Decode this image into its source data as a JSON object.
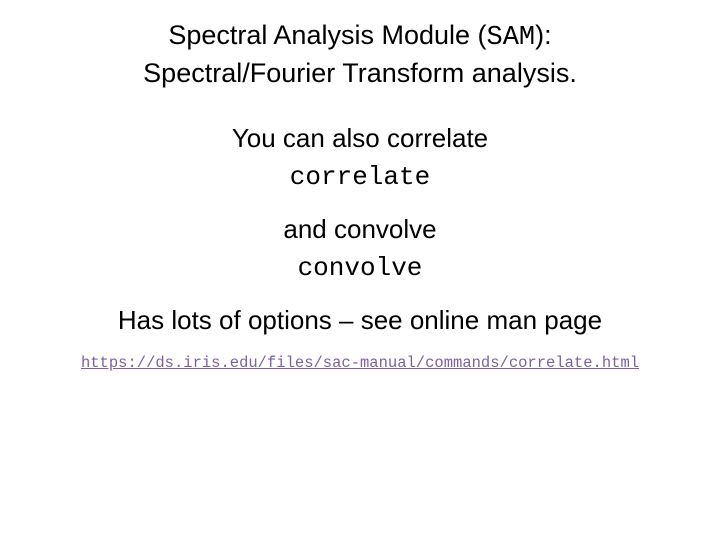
{
  "title": {
    "line1_pre": "Spectral Analysis Module (",
    "line1_code": "SAM",
    "line1_post": "):",
    "line2": "Spectral/Fourier Transform analysis."
  },
  "body": {
    "also_correlate": "You can also correlate",
    "correlate_cmd": "correlate",
    "and_convolve": "and convolve",
    "convolve_cmd": "convolve",
    "options_note": "Has lots of options – see online man page"
  },
  "link": {
    "text": "https://ds.iris.edu/files/sac-manual/commands/correlate.html",
    "href": "https://ds.iris.edu/files/sac-manual/commands/correlate.html"
  },
  "colors": {
    "background": "#ffffff",
    "text": "#000000",
    "link": "#7d60a0"
  },
  "fonts": {
    "body_family": "Arial",
    "mono_family": "Courier New",
    "title_size_pt": 20,
    "body_size_pt": 20,
    "link_size_pt": 12
  }
}
